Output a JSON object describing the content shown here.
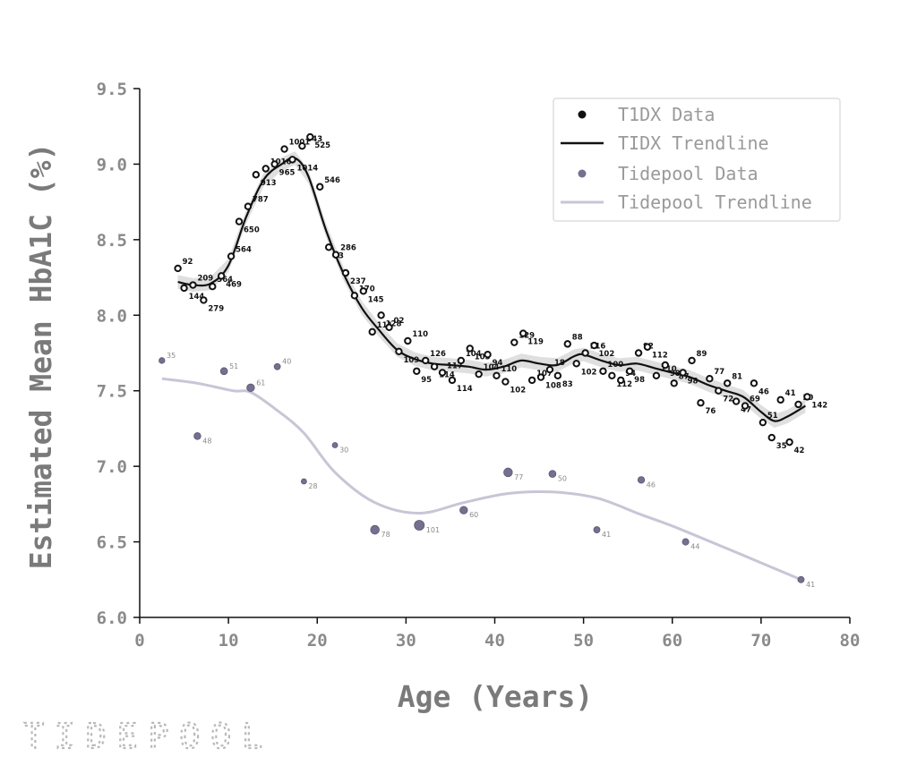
{
  "chart_data": {
    "type": "scatter",
    "ylabel": "Estimated Mean HbA1C (%)",
    "xlabel": "Age (Years)",
    "xlim": [
      0,
      80
    ],
    "ylim": [
      6.0,
      9.5
    ],
    "xticks": [
      "0",
      "10",
      "20",
      "30",
      "40",
      "50",
      "60",
      "70",
      "80"
    ],
    "yticks": [
      "6.0",
      "6.5",
      "7.0",
      "7.5",
      "8.0",
      "8.5",
      "9.0",
      "9.5"
    ],
    "grid": false,
    "legend_position": "top-right",
    "legend": [
      "T1DX Data",
      "TIDX Trendline",
      "Tidepool Data",
      "Tidepool Trendline"
    ],
    "colors": {
      "t1dx": "#111111",
      "band": "#d9d9d9",
      "tidepool_point": "#75708f",
      "tidepool_line": "#c8c5d6",
      "axis": "#111111",
      "text": "#8a8a8a"
    },
    "series": [
      {
        "key": "t1dx",
        "kind": "scatter",
        "points": [
          {
            "x": 4.3,
            "y": 8.31,
            "label": "92"
          },
          {
            "x": 5.0,
            "y": 8.18,
            "label": "144"
          },
          {
            "x": 6.0,
            "y": 8.2,
            "label": "209"
          },
          {
            "x": 7.2,
            "y": 8.1,
            "label": "279"
          },
          {
            "x": 8.2,
            "y": 8.19,
            "label": "364"
          },
          {
            "x": 9.2,
            "y": 8.26,
            "label": "469"
          },
          {
            "x": 10.3,
            "y": 8.39,
            "label": "564"
          },
          {
            "x": 11.2,
            "y": 8.62,
            "label": "650"
          },
          {
            "x": 12.2,
            "y": 8.72,
            "label": "787"
          },
          {
            "x": 13.1,
            "y": 8.93,
            "label": "913"
          },
          {
            "x": 14.2,
            "y": 8.97,
            "label": "1016"
          },
          {
            "x": 15.2,
            "y": 9.0,
            "label": "965"
          },
          {
            "x": 16.3,
            "y": 9.1,
            "label": "1001"
          },
          {
            "x": 17.2,
            "y": 9.03,
            "label": "1014"
          },
          {
            "x": 18.3,
            "y": 9.12,
            "label": "543"
          },
          {
            "x": 19.2,
            "y": 9.18,
            "label": "525"
          },
          {
            "x": 20.3,
            "y": 8.85,
            "label": "546"
          },
          {
            "x": 21.3,
            "y": 8.45,
            "label": "13"
          },
          {
            "x": 22.1,
            "y": 8.4,
            "label": "286"
          },
          {
            "x": 23.2,
            "y": 8.28,
            "label": "237"
          },
          {
            "x": 24.2,
            "y": 8.13,
            "label": "170"
          },
          {
            "x": 25.2,
            "y": 8.16,
            "label": "145"
          },
          {
            "x": 26.2,
            "y": 7.89,
            "label": "111"
          },
          {
            "x": 27.2,
            "y": 8.0,
            "label": "128"
          },
          {
            "x": 28.1,
            "y": 7.92,
            "label": "02"
          },
          {
            "x": 29.2,
            "y": 7.76,
            "label": "109"
          },
          {
            "x": 30.2,
            "y": 7.83,
            "label": "110"
          },
          {
            "x": 31.2,
            "y": 7.63,
            "label": "95"
          },
          {
            "x": 32.2,
            "y": 7.7,
            "label": "126"
          },
          {
            "x": 33.2,
            "y": 7.66,
            "label": "114"
          },
          {
            "x": 34.1,
            "y": 7.62,
            "label": "117"
          },
          {
            "x": 35.2,
            "y": 7.57,
            "label": "114"
          },
          {
            "x": 36.2,
            "y": 7.7,
            "label": "104"
          },
          {
            "x": 37.2,
            "y": 7.78,
            "label": "103"
          },
          {
            "x": 38.2,
            "y": 7.61,
            "label": "104"
          },
          {
            "x": 39.2,
            "y": 7.74,
            "label": "94"
          },
          {
            "x": 40.2,
            "y": 7.6,
            "label": "110"
          },
          {
            "x": 41.2,
            "y": 7.56,
            "label": "102"
          },
          {
            "x": 42.2,
            "y": 7.82,
            "label": "129"
          },
          {
            "x": 43.2,
            "y": 7.88,
            "label": "119"
          },
          {
            "x": 44.2,
            "y": 7.57,
            "label": "107"
          },
          {
            "x": 45.2,
            "y": 7.59,
            "label": "108"
          },
          {
            "x": 46.2,
            "y": 7.64,
            "label": "18"
          },
          {
            "x": 47.1,
            "y": 7.6,
            "label": "83"
          },
          {
            "x": 48.2,
            "y": 7.81,
            "label": "88"
          },
          {
            "x": 49.2,
            "y": 7.68,
            "label": "102"
          },
          {
            "x": 50.2,
            "y": 7.75,
            "label": "116"
          },
          {
            "x": 51.2,
            "y": 7.8,
            "label": "102"
          },
          {
            "x": 52.2,
            "y": 7.63,
            "label": "100"
          },
          {
            "x": 53.2,
            "y": 7.6,
            "label": "112"
          },
          {
            "x": 54.2,
            "y": 7.57,
            "label": "94"
          },
          {
            "x": 55.2,
            "y": 7.63,
            "label": "98"
          },
          {
            "x": 56.2,
            "y": 7.75,
            "label": "92"
          },
          {
            "x": 57.2,
            "y": 7.79,
            "label": "112"
          },
          {
            "x": 58.2,
            "y": 7.6,
            "label": "110"
          },
          {
            "x": 59.2,
            "y": 7.67,
            "label": "98"
          },
          {
            "x": 60.2,
            "y": 7.55,
            "label": "87"
          },
          {
            "x": 61.2,
            "y": 7.62,
            "label": "98"
          },
          {
            "x": 62.2,
            "y": 7.7,
            "label": "89"
          },
          {
            "x": 63.2,
            "y": 7.42,
            "label": "76"
          },
          {
            "x": 64.2,
            "y": 7.58,
            "label": "77"
          },
          {
            "x": 65.2,
            "y": 7.5,
            "label": "72"
          },
          {
            "x": 66.2,
            "y": 7.55,
            "label": "81"
          },
          {
            "x": 67.2,
            "y": 7.43,
            "label": "47"
          },
          {
            "x": 68.2,
            "y": 7.4,
            "label": "69"
          },
          {
            "x": 69.2,
            "y": 7.55,
            "label": "46"
          },
          {
            "x": 70.2,
            "y": 7.29,
            "label": "51"
          },
          {
            "x": 71.2,
            "y": 7.19,
            "label": "35"
          },
          {
            "x": 72.2,
            "y": 7.44,
            "label": "41"
          },
          {
            "x": 73.2,
            "y": 7.16,
            "label": "42"
          },
          {
            "x": 74.2,
            "y": 7.41,
            "label": "50"
          },
          {
            "x": 75.2,
            "y": 7.46,
            "label": "142"
          }
        ]
      },
      {
        "key": "t1dx_trend",
        "kind": "line",
        "points": [
          {
            "x": 4.3,
            "y": 8.22
          },
          {
            "x": 6,
            "y": 8.2
          },
          {
            "x": 8,
            "y": 8.21
          },
          {
            "x": 10,
            "y": 8.33
          },
          {
            "x": 12,
            "y": 8.65
          },
          {
            "x": 14,
            "y": 8.9
          },
          {
            "x": 16,
            "y": 9.0
          },
          {
            "x": 17.5,
            "y": 9.04
          },
          {
            "x": 19,
            "y": 8.92
          },
          {
            "x": 21,
            "y": 8.56
          },
          {
            "x": 23,
            "y": 8.27
          },
          {
            "x": 25,
            "y": 8.05
          },
          {
            "x": 27,
            "y": 7.9
          },
          {
            "x": 29,
            "y": 7.77
          },
          {
            "x": 31,
            "y": 7.71
          },
          {
            "x": 33,
            "y": 7.68
          },
          {
            "x": 35,
            "y": 7.67
          },
          {
            "x": 37,
            "y": 7.66
          },
          {
            "x": 39,
            "y": 7.64
          },
          {
            "x": 41,
            "y": 7.66
          },
          {
            "x": 43,
            "y": 7.7
          },
          {
            "x": 45,
            "y": 7.68
          },
          {
            "x": 47,
            "y": 7.67
          },
          {
            "x": 49,
            "y": 7.73
          },
          {
            "x": 50,
            "y": 7.74
          },
          {
            "x": 52,
            "y": 7.7
          },
          {
            "x": 54,
            "y": 7.67
          },
          {
            "x": 56,
            "y": 7.68
          },
          {
            "x": 58,
            "y": 7.65
          },
          {
            "x": 60,
            "y": 7.62
          },
          {
            "x": 62,
            "y": 7.59
          },
          {
            "x": 64,
            "y": 7.54
          },
          {
            "x": 66,
            "y": 7.5
          },
          {
            "x": 68,
            "y": 7.46
          },
          {
            "x": 70,
            "y": 7.36
          },
          {
            "x": 71.5,
            "y": 7.3
          },
          {
            "x": 73,
            "y": 7.33
          },
          {
            "x": 75,
            "y": 7.4
          }
        ]
      },
      {
        "key": "tidepool",
        "kind": "scatter",
        "points": [
          {
            "x": 2.5,
            "y": 7.7,
            "label": "35",
            "size": 35
          },
          {
            "x": 6.5,
            "y": 7.2,
            "label": "48",
            "size": 48
          },
          {
            "x": 9.5,
            "y": 7.63,
            "label": "51",
            "size": 51
          },
          {
            "x": 12.5,
            "y": 7.52,
            "label": "61",
            "size": 61
          },
          {
            "x": 15.5,
            "y": 7.66,
            "label": "40",
            "size": 40
          },
          {
            "x": 18.5,
            "y": 6.9,
            "label": "28",
            "size": 28
          },
          {
            "x": 22.0,
            "y": 7.14,
            "label": "30",
            "size": 30
          },
          {
            "x": 26.5,
            "y": 6.58,
            "label": "78",
            "size": 78
          },
          {
            "x": 31.5,
            "y": 6.61,
            "label": "101",
            "size": 101
          },
          {
            "x": 36.5,
            "y": 6.71,
            "label": "60",
            "size": 60
          },
          {
            "x": 41.5,
            "y": 6.96,
            "label": "77",
            "size": 77
          },
          {
            "x": 46.5,
            "y": 6.95,
            "label": "50",
            "size": 50
          },
          {
            "x": 51.5,
            "y": 6.58,
            "label": "41",
            "size": 41
          },
          {
            "x": 56.5,
            "y": 6.91,
            "label": "46",
            "size": 46
          },
          {
            "x": 61.5,
            "y": 6.5,
            "label": "44",
            "size": 44
          },
          {
            "x": 74.5,
            "y": 6.25,
            "label": "41",
            "size": 41
          }
        ]
      },
      {
        "key": "tidepool_trend",
        "kind": "line",
        "points": [
          {
            "x": 2.5,
            "y": 7.58
          },
          {
            "x": 6.5,
            "y": 7.55
          },
          {
            "x": 10.5,
            "y": 7.5
          },
          {
            "x": 12.5,
            "y": 7.49
          },
          {
            "x": 15.5,
            "y": 7.37
          },
          {
            "x": 18.5,
            "y": 7.22
          },
          {
            "x": 22,
            "y": 6.96
          },
          {
            "x": 26.5,
            "y": 6.76
          },
          {
            "x": 31.5,
            "y": 6.69
          },
          {
            "x": 36.5,
            "y": 6.76
          },
          {
            "x": 41.5,
            "y": 6.82
          },
          {
            "x": 46.5,
            "y": 6.83
          },
          {
            "x": 51.5,
            "y": 6.79
          },
          {
            "x": 56.5,
            "y": 6.68
          },
          {
            "x": 61.5,
            "y": 6.57
          },
          {
            "x": 74.5,
            "y": 6.25
          }
        ]
      }
    ]
  },
  "brand": {
    "logo_text": "TIDEPOOL"
  }
}
